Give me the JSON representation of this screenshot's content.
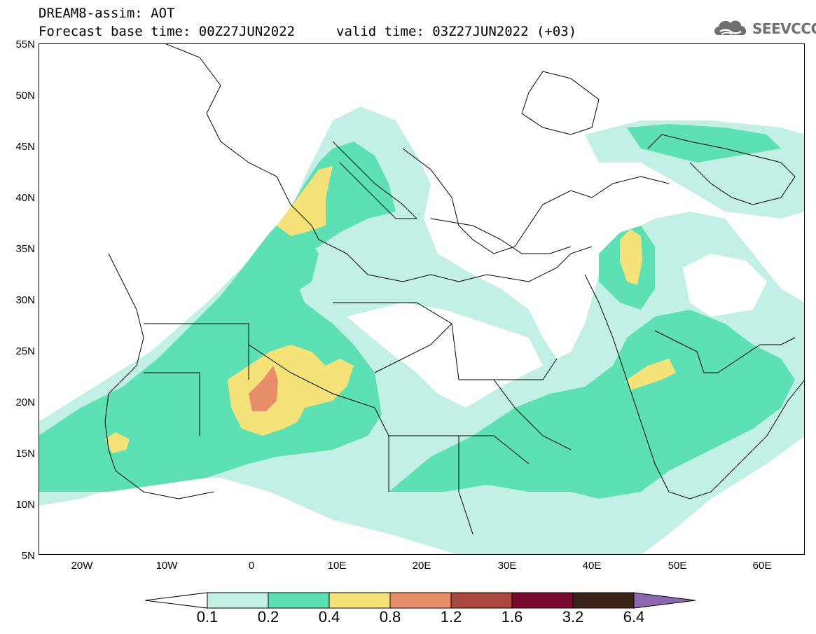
{
  "header": {
    "line1": "DREAM8-assim: AOT",
    "line2": "Forecast base time: 00Z27JUN2022",
    "valid": "valid time: 03Z27JUN2022 (+03)"
  },
  "logo": {
    "text": "SEEVCCC",
    "icon": "cloud-icon"
  },
  "map": {
    "variable": "AOT",
    "projection": "lat-lon",
    "lon_range": [
      -25,
      65
    ],
    "lat_range": [
      5,
      55
    ],
    "lat_ticks": [
      "55N",
      "50N",
      "45N",
      "40N",
      "35N",
      "30N",
      "25N",
      "20N",
      "15N",
      "10N",
      "5N"
    ],
    "lon_ticks": [
      "20W",
      "10W",
      "0",
      "10E",
      "20E",
      "30E",
      "40E",
      "50E",
      "60E"
    ]
  },
  "colorbar": {
    "levels": [
      "0.1",
      "0.2",
      "0.4",
      "0.8",
      "1.2",
      "1.6",
      "3.2",
      "6.4"
    ],
    "colors": [
      "#c3f0e6",
      "#5ce0b4",
      "#f5e37a",
      "#e98e6b",
      "#a9483e",
      "#7a0a2e",
      "#3b2417",
      "#8d67b0"
    ]
  }
}
